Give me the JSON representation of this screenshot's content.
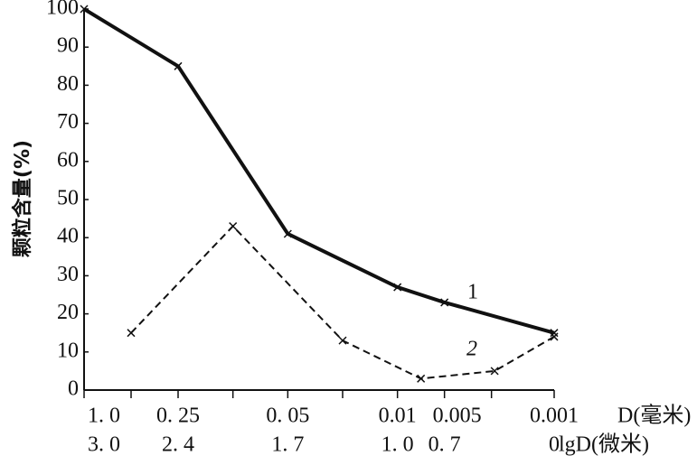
{
  "chart_data": {
    "type": "line",
    "y_label": "颗粒含量(%)",
    "x_label_top": "D(毫米)",
    "x_label_bottom": "lgD(微米)",
    "xlim": [
      3.0,
      0
    ],
    "ylim": [
      0,
      100
    ],
    "yticks": [
      0,
      10,
      20,
      30,
      40,
      50,
      60,
      70,
      80,
      90,
      100
    ],
    "xticks": [
      {
        "value": 3.0,
        "label": "3. 0"
      },
      {
        "value": 2.4,
        "label": "2. 4"
      },
      {
        "value": 1.7,
        "label": "1. 7"
      },
      {
        "value": 1.0,
        "label": "1. 0"
      },
      {
        "value": 0.7,
        "label": "0. 7"
      },
      {
        "value": 0,
        "label": "0"
      }
    ],
    "d_labels": [
      "1. 0",
      "0. 25",
      "0. 05",
      "0.01",
      "0.005",
      "0.001"
    ],
    "xminorticks": [
      2.7,
      2.05,
      1.35,
      0.4
    ],
    "series": [
      {
        "name": "1",
        "color": "#111111",
        "dashed": false,
        "x": [
          3.0,
          2.4,
          1.7,
          1.0,
          0.7,
          0
        ],
        "values": [
          100,
          85,
          41,
          27,
          23,
          15
        ]
      },
      {
        "name": "2",
        "color": "#111111",
        "dashed": true,
        "x": [
          2.7,
          2.05,
          1.35,
          0.85,
          0.38,
          0
        ],
        "values": [
          15,
          43,
          13,
          3,
          5,
          14
        ]
      }
    ]
  }
}
